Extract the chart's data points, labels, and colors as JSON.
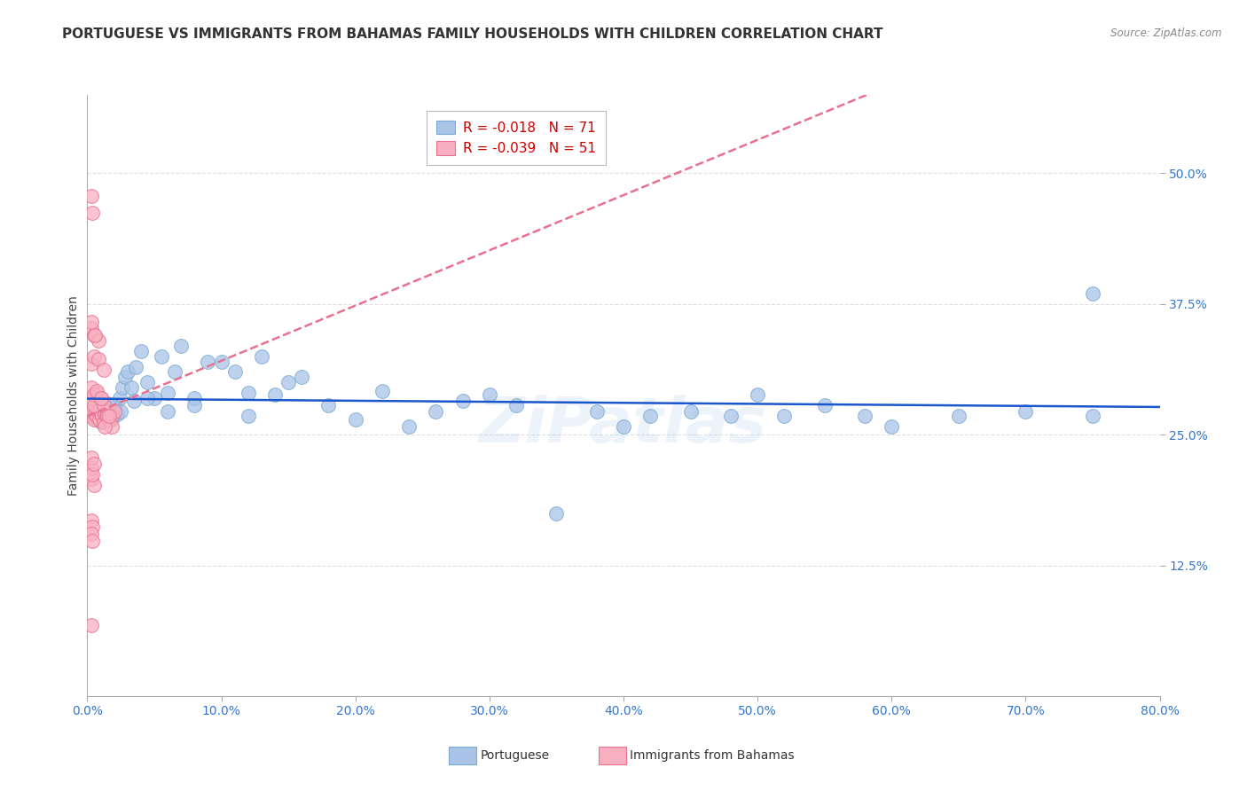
{
  "title": "PORTUGUESE VS IMMIGRANTS FROM BAHAMAS FAMILY HOUSEHOLDS WITH CHILDREN CORRELATION CHART",
  "source": "Source: ZipAtlas.com",
  "ylabel": "Family Households with Children",
  "ytick_labels": [
    "12.5%",
    "25.0%",
    "37.5%",
    "50.0%"
  ],
  "ytick_values": [
    0.125,
    0.25,
    0.375,
    0.5
  ],
  "xlim": [
    0.0,
    0.8
  ],
  "ylim": [
    0.0,
    0.575
  ],
  "watermark": "ZiPatlas",
  "background_color": "#ffffff",
  "grid_color": "#e0e0e0",
  "title_fontsize": 11,
  "axis_label_fontsize": 10,
  "tick_fontsize": 10,
  "portuguese": {
    "color": "#aac4e8",
    "edge_color": "#7aaad0",
    "trend_color": "#1a56cc",
    "trend_style": "-",
    "R_label": "-0.018",
    "N_label": "71",
    "x": [
      0.003,
      0.005,
      0.006,
      0.007,
      0.008,
      0.009,
      0.01,
      0.011,
      0.012,
      0.013,
      0.014,
      0.015,
      0.016,
      0.017,
      0.018,
      0.02,
      0.022,
      0.024,
      0.026,
      0.028,
      0.03,
      0.033,
      0.036,
      0.04,
      0.045,
      0.05,
      0.055,
      0.06,
      0.065,
      0.07,
      0.08,
      0.09,
      0.1,
      0.11,
      0.12,
      0.13,
      0.14,
      0.15,
      0.16,
      0.18,
      0.2,
      0.22,
      0.24,
      0.26,
      0.28,
      0.3,
      0.32,
      0.35,
      0.38,
      0.4,
      0.42,
      0.45,
      0.48,
      0.5,
      0.52,
      0.55,
      0.58,
      0.6,
      0.65,
      0.7,
      0.75,
      0.008,
      0.012,
      0.018,
      0.025,
      0.035,
      0.045,
      0.06,
      0.08,
      0.12,
      0.75
    ],
    "y": [
      0.27,
      0.268,
      0.272,
      0.265,
      0.275,
      0.268,
      0.262,
      0.27,
      0.275,
      0.268,
      0.272,
      0.28,
      0.268,
      0.272,
      0.265,
      0.278,
      0.27,
      0.285,
      0.295,
      0.305,
      0.31,
      0.295,
      0.315,
      0.33,
      0.3,
      0.285,
      0.325,
      0.29,
      0.31,
      0.335,
      0.285,
      0.32,
      0.32,
      0.31,
      0.29,
      0.325,
      0.288,
      0.3,
      0.305,
      0.278,
      0.265,
      0.292,
      0.258,
      0.272,
      0.282,
      0.288,
      0.278,
      0.175,
      0.272,
      0.258,
      0.268,
      0.272,
      0.268,
      0.288,
      0.268,
      0.278,
      0.268,
      0.258,
      0.268,
      0.272,
      0.268,
      0.268,
      0.272,
      0.278,
      0.272,
      0.282,
      0.285,
      0.272,
      0.278,
      0.268,
      0.385
    ]
  },
  "bahamas": {
    "color": "#f8b0c0",
    "edge_color": "#e87090",
    "trend_color": "#e87090",
    "trend_style": "--",
    "R_label": "-0.039",
    "N_label": "51",
    "x": [
      0.003,
      0.004,
      0.005,
      0.006,
      0.007,
      0.008,
      0.009,
      0.01,
      0.011,
      0.012,
      0.013,
      0.014,
      0.015,
      0.016,
      0.018,
      0.02,
      0.003,
      0.005,
      0.007,
      0.01,
      0.012,
      0.015,
      0.018,
      0.003,
      0.005,
      0.007,
      0.01,
      0.013,
      0.016,
      0.003,
      0.005,
      0.008,
      0.012,
      0.003,
      0.005,
      0.008,
      0.003,
      0.005,
      0.003,
      0.006,
      0.003,
      0.004,
      0.003,
      0.005,
      0.003,
      0.004,
      0.003,
      0.004,
      0.003,
      0.004,
      0.003
    ],
    "y": [
      0.268,
      0.272,
      0.265,
      0.27,
      0.268,
      0.272,
      0.265,
      0.27,
      0.268,
      0.262,
      0.27,
      0.268,
      0.272,
      0.265,
      0.268,
      0.272,
      0.285,
      0.278,
      0.29,
      0.285,
      0.278,
      0.268,
      0.258,
      0.295,
      0.288,
      0.292,
      0.285,
      0.258,
      0.268,
      0.318,
      0.325,
      0.322,
      0.312,
      0.352,
      0.345,
      0.34,
      0.208,
      0.202,
      0.358,
      0.345,
      0.218,
      0.212,
      0.228,
      0.222,
      0.168,
      0.162,
      0.155,
      0.148,
      0.478,
      0.462,
      0.068
    ]
  }
}
